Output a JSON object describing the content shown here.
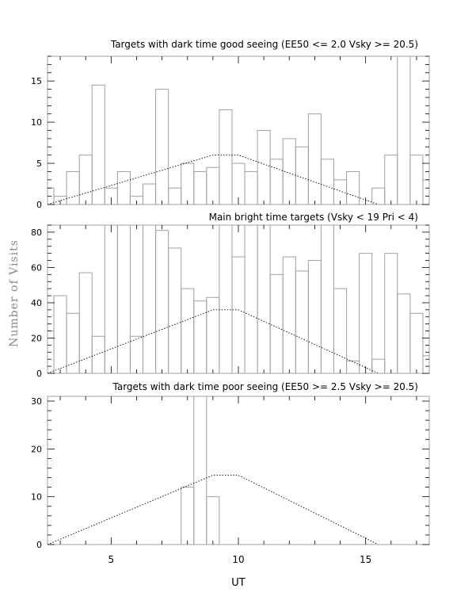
{
  "figure": {
    "ylabel": "Number of Visits",
    "xlabel": "UT"
  },
  "chart_data": [
    {
      "type": "histogram",
      "title": "Targets with dark time good seeing (EE50 <= 2.0 Vsky >= 20.5)",
      "xlim": [
        2.5,
        17.5
      ],
      "ylim": [
        0,
        18
      ],
      "xticks": [
        5,
        10,
        15
      ],
      "yticks": [
        0,
        5,
        10,
        15
      ],
      "bin_edges": [
        2.5,
        2.75,
        3.25,
        3.75,
        4.25,
        4.75,
        5.25,
        5.75,
        6.25,
        6.75,
        7.25,
        7.75,
        8.25,
        8.75,
        9.25,
        9.75,
        10.25,
        10.75,
        11.25,
        11.75,
        12.25,
        12.75,
        13.25,
        13.75,
        14.25,
        14.75,
        15.25,
        15.75,
        16.25,
        16.75,
        17.25,
        17.5
      ],
      "values": [
        2,
        1,
        4,
        6,
        14.5,
        2,
        4,
        1,
        2.5,
        14,
        2,
        5,
        4,
        4.5,
        11.5,
        5,
        4,
        9,
        5.5,
        8,
        7,
        11,
        5.5,
        3,
        4,
        0,
        2,
        6,
        18,
        6,
        3
      ],
      "envelope": {
        "x": [
          2.5,
          9.0,
          10.0,
          15.5
        ],
        "y": [
          0,
          6,
          6,
          0
        ]
      }
    },
    {
      "type": "histogram",
      "title": "Main bright time targets (Vsky < 19 Pri < 4)",
      "xlim": [
        2.5,
        17.5
      ],
      "ylim": [
        0,
        84
      ],
      "xticks": [
        5,
        10,
        15
      ],
      "yticks": [
        0,
        20,
        40,
        60,
        80
      ],
      "bin_edges": [
        2.5,
        2.75,
        3.25,
        3.75,
        4.25,
        4.75,
        5.25,
        5.75,
        6.25,
        6.75,
        7.25,
        7.75,
        8.25,
        8.75,
        9.25,
        9.75,
        10.25,
        10.75,
        11.25,
        11.75,
        12.25,
        12.75,
        13.25,
        13.75,
        14.25,
        14.75,
        15.25,
        15.75,
        16.25,
        16.75,
        17.25,
        17.5
      ],
      "values": [
        24,
        44,
        34,
        57,
        21,
        84,
        84,
        21,
        84,
        81,
        71,
        48,
        41,
        43,
        84,
        66,
        84,
        84,
        56,
        66,
        58,
        64,
        84,
        48,
        7,
        68,
        8,
        68,
        45,
        34,
        10
      ],
      "envelope": {
        "x": [
          2.5,
          9.0,
          10.0,
          15.5
        ],
        "y": [
          0,
          36,
          36,
          0
        ]
      }
    },
    {
      "type": "histogram",
      "title": "Targets with dark time poor seeing (EE50 >= 2.5 Vsky >= 20.5)",
      "xlim": [
        2.5,
        17.5
      ],
      "ylim": [
        0,
        31
      ],
      "xticks": [
        5,
        10,
        15
      ],
      "xticklabels": [
        "5",
        "10",
        "15"
      ],
      "yticks": [
        0,
        10,
        20,
        30
      ],
      "bin_edges": [
        7.75,
        8.25,
        8.75,
        9.25
      ],
      "values": [
        12,
        31,
        10
      ],
      "envelope": {
        "x": [
          2.5,
          9.0,
          10.0,
          15.5
        ],
        "y": [
          0,
          14.5,
          14.5,
          0
        ]
      }
    }
  ]
}
